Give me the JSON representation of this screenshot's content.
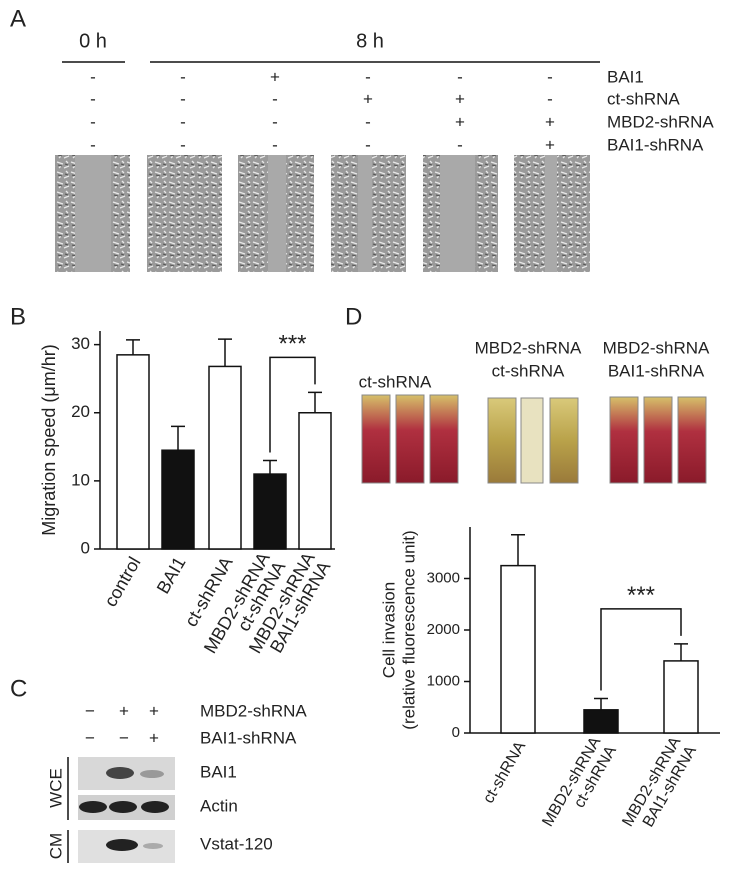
{
  "panel_a": {
    "label": "A",
    "time_labels": [
      "0 h",
      "8 h"
    ],
    "rows": [
      {
        "name": "BAI1",
        "signs": [
          "-",
          "-",
          "+",
          "-",
          "-",
          "-"
        ]
      },
      {
        "name": "ct-shRNA",
        "signs": [
          "-",
          "-",
          "-",
          "+",
          "+",
          "-"
        ]
      },
      {
        "name": "MBD2-shRNA",
        "signs": [
          "-",
          "-",
          "-",
          "-",
          "+",
          "+"
        ]
      },
      {
        "name": "BAI1-shRNA",
        "signs": [
          "-",
          "-",
          "-",
          "-",
          "-",
          "+"
        ]
      }
    ]
  },
  "chart_data": [
    {
      "type": "bar",
      "label": "B",
      "ylabel": "Migration speed (μm/hr)",
      "categories": [
        [
          "control"
        ],
        [
          "BAI1"
        ],
        [
          "ct-shRNA"
        ],
        [
          "MBD2-shRNA",
          "ct-shRNA"
        ],
        [
          "MBD2-shRNA",
          "BAI1-shRNA"
        ]
      ],
      "values": [
        28.5,
        14.5,
        26.8,
        11,
        20
      ],
      "errors": [
        2.2,
        3.5,
        4,
        2,
        3
      ],
      "colors": [
        "#ffffff",
        "#111111",
        "#ffffff",
        "#111111",
        "#ffffff"
      ],
      "ylim": [
        0,
        32
      ],
      "yticks": [
        0,
        10,
        20,
        30
      ],
      "annotation": "***"
    },
    {
      "type": "bar",
      "label": "D",
      "ylabel": [
        "Cell invasion",
        "(relative fluorescence unit)"
      ],
      "image_labels": [
        [
          "ct-shRNA"
        ],
        [
          "MBD2-shRNA",
          "ct-shRNA"
        ],
        [
          "MBD2-shRNA",
          "BAI1-shRNA"
        ]
      ],
      "categories": [
        [
          "ct-shRNA"
        ],
        [
          "MBD2-shRNA",
          "ct-shRNA"
        ],
        [
          "MBD2-shRNA",
          "BAI1-shRNA"
        ]
      ],
      "values": [
        3250,
        450,
        1400
      ],
      "errors": [
        600,
        220,
        330
      ],
      "colors": [
        "#ffffff",
        "#111111",
        "#ffffff"
      ],
      "ylim": [
        0,
        4000
      ],
      "yticks": [
        0,
        1000,
        2000,
        3000
      ],
      "annotation": "***"
    }
  ],
  "panel_c": {
    "label": "C",
    "rows": [
      {
        "name": "MBD2-shRNA",
        "signs": [
          "−",
          "+",
          "+"
        ]
      },
      {
        "name": "BAI1-shRNA",
        "signs": [
          "−",
          "−",
          "+"
        ]
      }
    ],
    "blots": [
      "BAI1",
      "Actin",
      "Vstat-120"
    ],
    "groups": [
      "WCE",
      "CM"
    ]
  }
}
